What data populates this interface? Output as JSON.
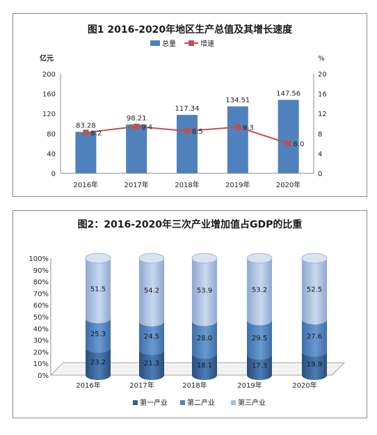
{
  "chart_data": [
    {
      "type": "bar",
      "title": "图1   2016-2020年地区生产总值及其增长速度",
      "categories": [
        "2016年",
        "2017年",
        "2018年",
        "2019年",
        "2020年"
      ],
      "y_left_unit": "亿元",
      "y_right_unit": "%",
      "ylim_left": [
        0,
        200
      ],
      "ylim_right": [
        0,
        20
      ],
      "left_ticks": [
        "0",
        "40",
        "80",
        "120",
        "160",
        "200"
      ],
      "right_ticks": [
        "0",
        "4",
        "8",
        "12",
        "16",
        "20"
      ],
      "legend_position": "top-center",
      "series": [
        {
          "name": "总量",
          "type": "bar",
          "axis": "left",
          "color": "#4f81bd",
          "values": [
            83.28,
            98.21,
            117.34,
            134.51,
            147.56
          ],
          "labels": [
            "83.28",
            "98.21",
            "117.34",
            "134.51",
            "147.56"
          ]
        },
        {
          "name": "增速",
          "type": "line",
          "axis": "right",
          "color": "#c0504d",
          "values": [
            8.2,
            9.4,
            8.5,
            9.3,
            6.0
          ],
          "labels": [
            "8.2",
            "9.4",
            "8.5",
            "9.3",
            "6.0"
          ]
        }
      ]
    },
    {
      "type": "bar",
      "stacked": true,
      "title": "图2：2016-2020年三次产业增加值占GDP的比重",
      "categories": [
        "2016年",
        "2017年",
        "2018年",
        "2019年",
        "2020年"
      ],
      "ylim": [
        0,
        100
      ],
      "y_ticks": [
        "0%",
        "10%",
        "20%",
        "30%",
        "40%",
        "50%",
        "60%",
        "70%",
        "80%",
        "90%",
        "100%"
      ],
      "legend_position": "bottom",
      "series": [
        {
          "name": "第一产业",
          "color": "#366092",
          "values": [
            23.2,
            21.3,
            18.1,
            17.3,
            19.9
          ],
          "labels": [
            "23.2",
            "21.3",
            "18.1",
            "17.3",
            "19.9"
          ]
        },
        {
          "name": "第二产业",
          "color": "#4f81bd",
          "values": [
            25.3,
            24.5,
            28.0,
            29.5,
            27.6
          ],
          "labels": [
            "25.3",
            "24.5",
            "28.0",
            "29.5",
            "27.6"
          ]
        },
        {
          "name": "第三产业",
          "color": "#a7bddf",
          "values": [
            51.5,
            54.2,
            53.9,
            53.2,
            52.5
          ],
          "labels": [
            "51.5",
            "54.2",
            "53.9",
            "53.2",
            "52.5"
          ]
        }
      ]
    }
  ]
}
